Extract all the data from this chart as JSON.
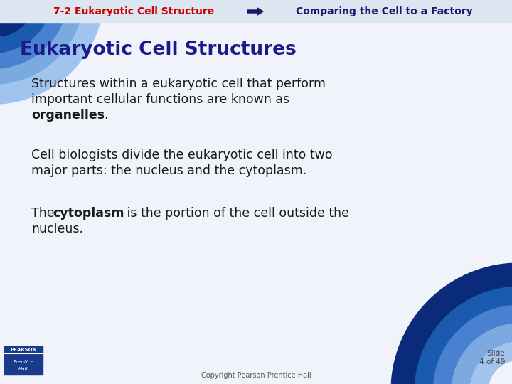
{
  "bg_color": "#f0f4fa",
  "header_bg": "#dce6f0",
  "header_text1": "7-2 Eukaryotic Cell Structure",
  "header_text1_color": "#cc0000",
  "header_text2": "Comparing the Cell to a Factory",
  "header_text2_color": "#1a1a6b",
  "title": "Eukaryotic Cell Structures",
  "title_color": "#1a1a8b",
  "footer_copyright": "Copyright Pearson Prentice Hall",
  "footer_slide": "Slide\n4 of 49",
  "text_color": "#1a1a1a",
  "blue_dark": "#0a2a7a",
  "blue_mid": "#1a5aaf",
  "blue_light": "#4a80d0",
  "blue_lighter": "#7aaae0"
}
